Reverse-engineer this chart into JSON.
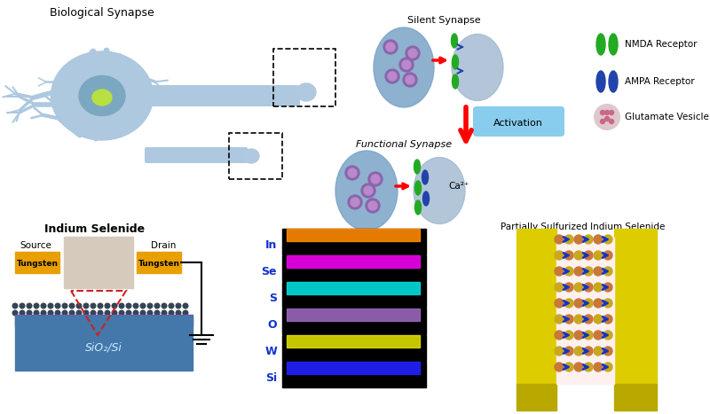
{
  "bg_color": "#ffffff",
  "title_bio": "Biological Synapse",
  "title_silent": "Silent Synapse",
  "title_functional": "Functional Synapse",
  "title_indium": "Indium Selenide",
  "title_sulfurized": "Partially Sulfurized Indium Selenide",
  "legend_nmda": "NMDA Receptor",
  "legend_ampa": "AMPA Receptor",
  "legend_glut": "Glutamate Vesicle",
  "activation_label": "Activation",
  "source_label": "Source",
  "drain_label": "Drain",
  "tungsten_label": "Tungsten",
  "sio2_label": "SiO₂/Si",
  "ca_label": "Ca²⁺",
  "elements": [
    "In",
    "Se",
    "S",
    "O",
    "W",
    "Si"
  ],
  "element_colors": [
    "#ff8800",
    "#ee00ee",
    "#00dddd",
    "#9966bb",
    "#dddd00",
    "#2222ff"
  ],
  "neuron_color": "#adc8df",
  "nucleus_color": "#7ba8c0",
  "nuc_center_color": "#b8e040",
  "tungsten_color": "#e8a000",
  "sio2_purple": "#7755aa",
  "sio2_blue": "#4477aa",
  "yellow_electrode": "#ddcc00",
  "yellow_electrode_dark": "#b8a800",
  "blue_arrow": "#1133cc",
  "vesicle_outer": "#8866aa",
  "vesicle_inner": "#bb88cc",
  "nmda_color": "#22aa22",
  "ampa_color": "#2244aa",
  "pre_syn_color": "#7aa4c8",
  "post_syn_color": "#a0b8d0",
  "glut_bg": "#ddc8cc",
  "glut_dot": "#cc6688",
  "dot_color": "#334455",
  "micro_img_color": "#d5cabb",
  "tri_color": "#cc2222",
  "act_box_color": "#88ccee",
  "wire_color": "#000000",
  "channel_bg": "#fff0f0",
  "atom_color1": "#c87838",
  "atom_color2": "#c8a820"
}
